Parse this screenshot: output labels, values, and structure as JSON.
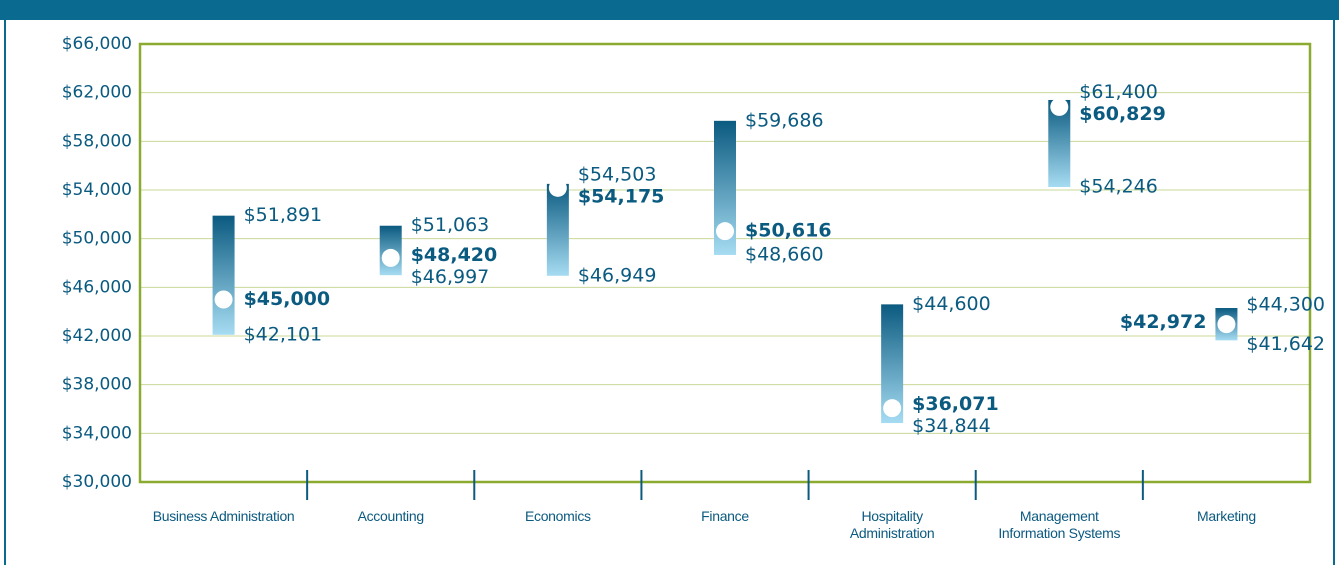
{
  "chart_data": {
    "type": "range",
    "categories": [
      "Business Administration",
      "Accounting",
      "Economics",
      "Finance",
      "Hospitality\nAdministration",
      "Management\nInformation Systems",
      "Marketing"
    ],
    "series": [
      {
        "values": [
          51891,
          51063,
          54503,
          59686,
          44600,
          61400,
          44300
        ],
        "value_labels": [
          "$51,891",
          "$51,063",
          "$54,503",
          "$59,686",
          "$44,600",
          "$61,400",
          "$44,300"
        ]
      },
      {
        "values": [
          42101,
          46997,
          46949,
          48660,
          34844,
          54246,
          41642
        ],
        "value_labels": [
          "$42,101",
          "$46,997",
          "$46,949",
          "$48,660",
          "$34,844",
          "$54,246",
          "$41,642"
        ]
      },
      {
        "values": [
          45000,
          48420,
          54175,
          50616,
          36071,
          60829,
          42972
        ],
        "value_labels": [
          "$45,000",
          "$48,420",
          "$54,175",
          "$50,616",
          "$36,071",
          "$60,829",
          "$42,972"
        ]
      }
    ],
    "color": "#0b5a80",
    "color_light": "#a6dcf2",
    "ylim": [
      30000,
      66000
    ],
    "yticks": [
      {
        "value": 30000,
        "label": "$30,000"
      },
      {
        "value": 34000,
        "label": "$34,000"
      },
      {
        "value": 38000,
        "label": "$38,000"
      },
      {
        "value": 42000,
        "label": "$42,000"
      },
      {
        "value": 46000,
        "label": "$46,000"
      },
      {
        "value": 50000,
        "label": "$50,000"
      },
      {
        "value": 54000,
        "label": "$54,000"
      },
      {
        "value": 58000,
        "label": "$58,000"
      },
      {
        "value": 62000,
        "label": "$62,000"
      },
      {
        "value": 66000,
        "label": "$66,000"
      }
    ],
    "grid": true
  }
}
